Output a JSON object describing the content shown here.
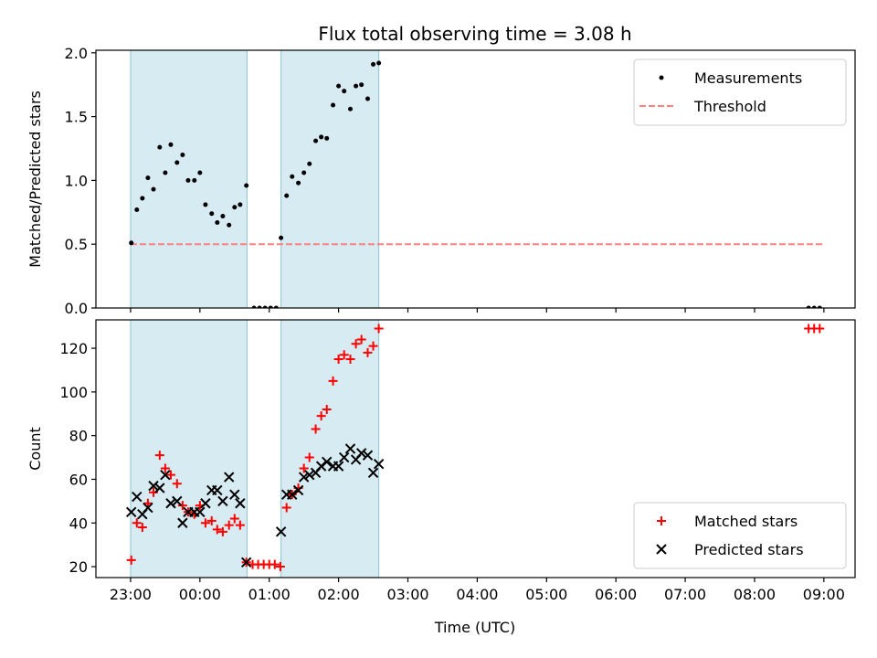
{
  "figure": {
    "title": "Flux total observing time = 3.08 h",
    "xlabel": "Time (UTC)"
  },
  "chart_data": [
    {
      "type": "scatter",
      "ylabel": "Matched/Predicted stars",
      "xlim": [
        -0.5,
        10.45
      ],
      "ylim": [
        0,
        2.02
      ],
      "yticks": [
        "0.0",
        "0.5",
        "1.0",
        "1.5",
        "2.0"
      ],
      "shaded_intervals": [
        [
          0.0,
          1.68
        ],
        [
          2.17,
          3.58
        ]
      ],
      "legend": {
        "position": "top-right",
        "entries": [
          "Measurements",
          "Threshold"
        ]
      },
      "threshold": {
        "name": "Threshold",
        "value": 0.5,
        "x_range": [
          0.0,
          10.0
        ],
        "color": "#ff8080",
        "style": "dashed"
      },
      "series": [
        {
          "name": "Measurements",
          "marker": "dot",
          "color": "#000000",
          "points": [
            [
              0.01,
              0.51
            ],
            [
              0.09,
              0.77
            ],
            [
              0.17,
              0.86
            ],
            [
              0.25,
              1.02
            ],
            [
              0.33,
              0.93
            ],
            [
              0.42,
              1.26
            ],
            [
              0.5,
              1.06
            ],
            [
              0.58,
              1.28
            ],
            [
              0.67,
              1.14
            ],
            [
              0.75,
              1.2
            ],
            [
              0.83,
              1.0
            ],
            [
              0.92,
              1.0
            ],
            [
              1.0,
              1.06
            ],
            [
              1.08,
              0.81
            ],
            [
              1.17,
              0.74
            ],
            [
              1.25,
              0.67
            ],
            [
              1.33,
              0.72
            ],
            [
              1.42,
              0.65
            ],
            [
              1.5,
              0.79
            ],
            [
              1.58,
              0.81
            ],
            [
              1.67,
              0.96
            ],
            [
              1.78,
              0.0
            ],
            [
              1.86,
              0.0
            ],
            [
              1.94,
              0.0
            ],
            [
              2.02,
              0.0
            ],
            [
              2.1,
              0.0
            ],
            [
              2.17,
              0.55
            ],
            [
              2.25,
              0.88
            ],
            [
              2.33,
              1.03
            ],
            [
              2.42,
              0.98
            ],
            [
              2.5,
              1.06
            ],
            [
              2.58,
              1.13
            ],
            [
              2.67,
              1.31
            ],
            [
              2.75,
              1.34
            ],
            [
              2.83,
              1.33
            ],
            [
              2.92,
              1.59
            ],
            [
              3.0,
              1.74
            ],
            [
              3.08,
              1.7
            ],
            [
              3.17,
              1.56
            ],
            [
              3.25,
              1.74
            ],
            [
              3.33,
              1.75
            ],
            [
              3.42,
              1.64
            ],
            [
              3.5,
              1.91
            ],
            [
              3.58,
              1.92
            ],
            [
              9.78,
              0.0
            ],
            [
              9.86,
              0.0
            ],
            [
              9.94,
              0.0
            ]
          ]
        }
      ]
    },
    {
      "type": "scatter",
      "ylabel": "Count",
      "xlim": [
        -0.5,
        10.45
      ],
      "ylim": [
        15,
        133
      ],
      "yticks": [
        "20",
        "40",
        "60",
        "80",
        "100",
        "120"
      ],
      "xticks": [
        "23:00",
        "00:00",
        "01:00",
        "02:00",
        "03:00",
        "04:00",
        "05:00",
        "06:00",
        "07:00",
        "08:00",
        "09:00"
      ],
      "shaded_intervals": [
        [
          0.0,
          1.68
        ],
        [
          2.17,
          3.58
        ]
      ],
      "legend": {
        "position": "bottom-right",
        "entries": [
          "Matched stars",
          "Predicted stars"
        ]
      },
      "series": [
        {
          "name": "Matched stars",
          "marker": "plus",
          "color": "#ff0000",
          "points": [
            [
              0.01,
              23
            ],
            [
              0.09,
              40
            ],
            [
              0.17,
              38
            ],
            [
              0.25,
              49
            ],
            [
              0.33,
              54
            ],
            [
              0.42,
              71
            ],
            [
              0.5,
              65
            ],
            [
              0.58,
              62
            ],
            [
              0.67,
              58
            ],
            [
              0.75,
              48
            ],
            [
              0.83,
              45
            ],
            [
              0.92,
              44
            ],
            [
              1.0,
              48
            ],
            [
              1.08,
              40
            ],
            [
              1.17,
              41
            ],
            [
              1.25,
              37
            ],
            [
              1.33,
              36
            ],
            [
              1.42,
              39
            ],
            [
              1.5,
              42
            ],
            [
              1.58,
              39
            ],
            [
              1.67,
              22
            ],
            [
              1.76,
              21
            ],
            [
              1.84,
              21
            ],
            [
              1.92,
              21
            ],
            [
              2.0,
              21
            ],
            [
              2.08,
              21
            ],
            [
              2.16,
              20
            ],
            [
              2.25,
              47
            ],
            [
              2.33,
              53
            ],
            [
              2.42,
              56
            ],
            [
              2.5,
              65
            ],
            [
              2.58,
              70
            ],
            [
              2.67,
              83
            ],
            [
              2.75,
              89
            ],
            [
              2.83,
              92
            ],
            [
              2.92,
              105
            ],
            [
              3.0,
              115
            ],
            [
              3.08,
              117
            ],
            [
              3.17,
              115
            ],
            [
              3.25,
              122
            ],
            [
              3.33,
              124
            ],
            [
              3.42,
              118
            ],
            [
              3.5,
              121
            ],
            [
              3.58,
              129
            ],
            [
              9.78,
              129
            ],
            [
              9.86,
              129
            ],
            [
              9.94,
              129
            ]
          ]
        },
        {
          "name": "Predicted stars",
          "marker": "x",
          "color": "#000000",
          "points": [
            [
              0.01,
              45
            ],
            [
              0.09,
              52
            ],
            [
              0.17,
              44
            ],
            [
              0.25,
              47
            ],
            [
              0.33,
              57
            ],
            [
              0.42,
              56
            ],
            [
              0.5,
              62
            ],
            [
              0.58,
              49
            ],
            [
              0.67,
              50
            ],
            [
              0.75,
              40
            ],
            [
              0.83,
              45
            ],
            [
              0.92,
              45
            ],
            [
              1.0,
              45
            ],
            [
              1.08,
              49
            ],
            [
              1.17,
              55
            ],
            [
              1.25,
              55
            ],
            [
              1.33,
              50
            ],
            [
              1.42,
              61
            ],
            [
              1.5,
              53
            ],
            [
              1.58,
              49
            ],
            [
              1.67,
              22
            ],
            [
              2.17,
              36
            ],
            [
              2.25,
              53
            ],
            [
              2.33,
              53
            ],
            [
              2.42,
              55
            ],
            [
              2.5,
              61
            ],
            [
              2.58,
              62
            ],
            [
              2.67,
              63
            ],
            [
              2.75,
              66
            ],
            [
              2.83,
              68
            ],
            [
              2.92,
              66
            ],
            [
              3.0,
              66
            ],
            [
              3.08,
              70
            ],
            [
              3.17,
              74
            ],
            [
              3.25,
              69
            ],
            [
              3.33,
              72
            ],
            [
              3.42,
              71
            ],
            [
              3.5,
              63
            ],
            [
              3.58,
              67
            ]
          ]
        }
      ]
    }
  ]
}
